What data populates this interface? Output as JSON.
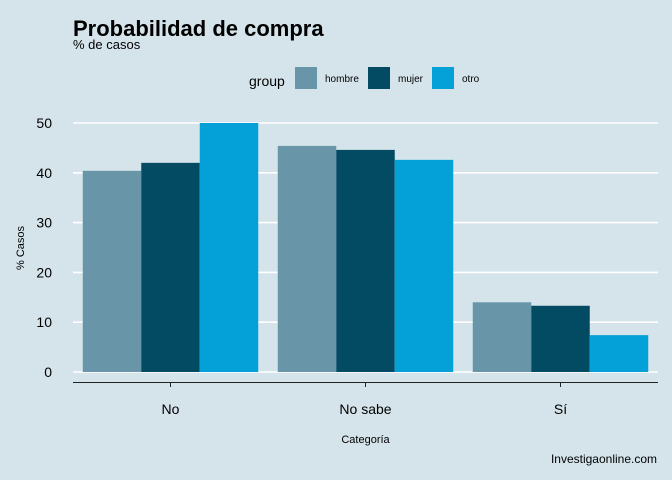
{
  "chart_data": {
    "type": "bar",
    "title": "Probabilidad de compra",
    "subtitle": "% de casos",
    "xlabel": "Categoría",
    "ylabel": "% Casos",
    "caption": "Investigaonline.com",
    "categories": [
      "No",
      "No sabe",
      "Sí"
    ],
    "ylim": [
      0,
      50
    ],
    "yticks": [
      0,
      10,
      20,
      30,
      40,
      50
    ],
    "grid": true,
    "legend": {
      "title": "group",
      "position": "top"
    },
    "series": [
      {
        "name": "hombre",
        "color": "#6895a8",
        "values": [
          40.4,
          45.4,
          14.0
        ]
      },
      {
        "name": "mujer",
        "color": "#024b63",
        "values": [
          42.0,
          44.6,
          13.3
        ]
      },
      {
        "name": "otro",
        "color": "#03a1d8",
        "values": [
          50.0,
          42.6,
          7.4
        ]
      }
    ]
  }
}
